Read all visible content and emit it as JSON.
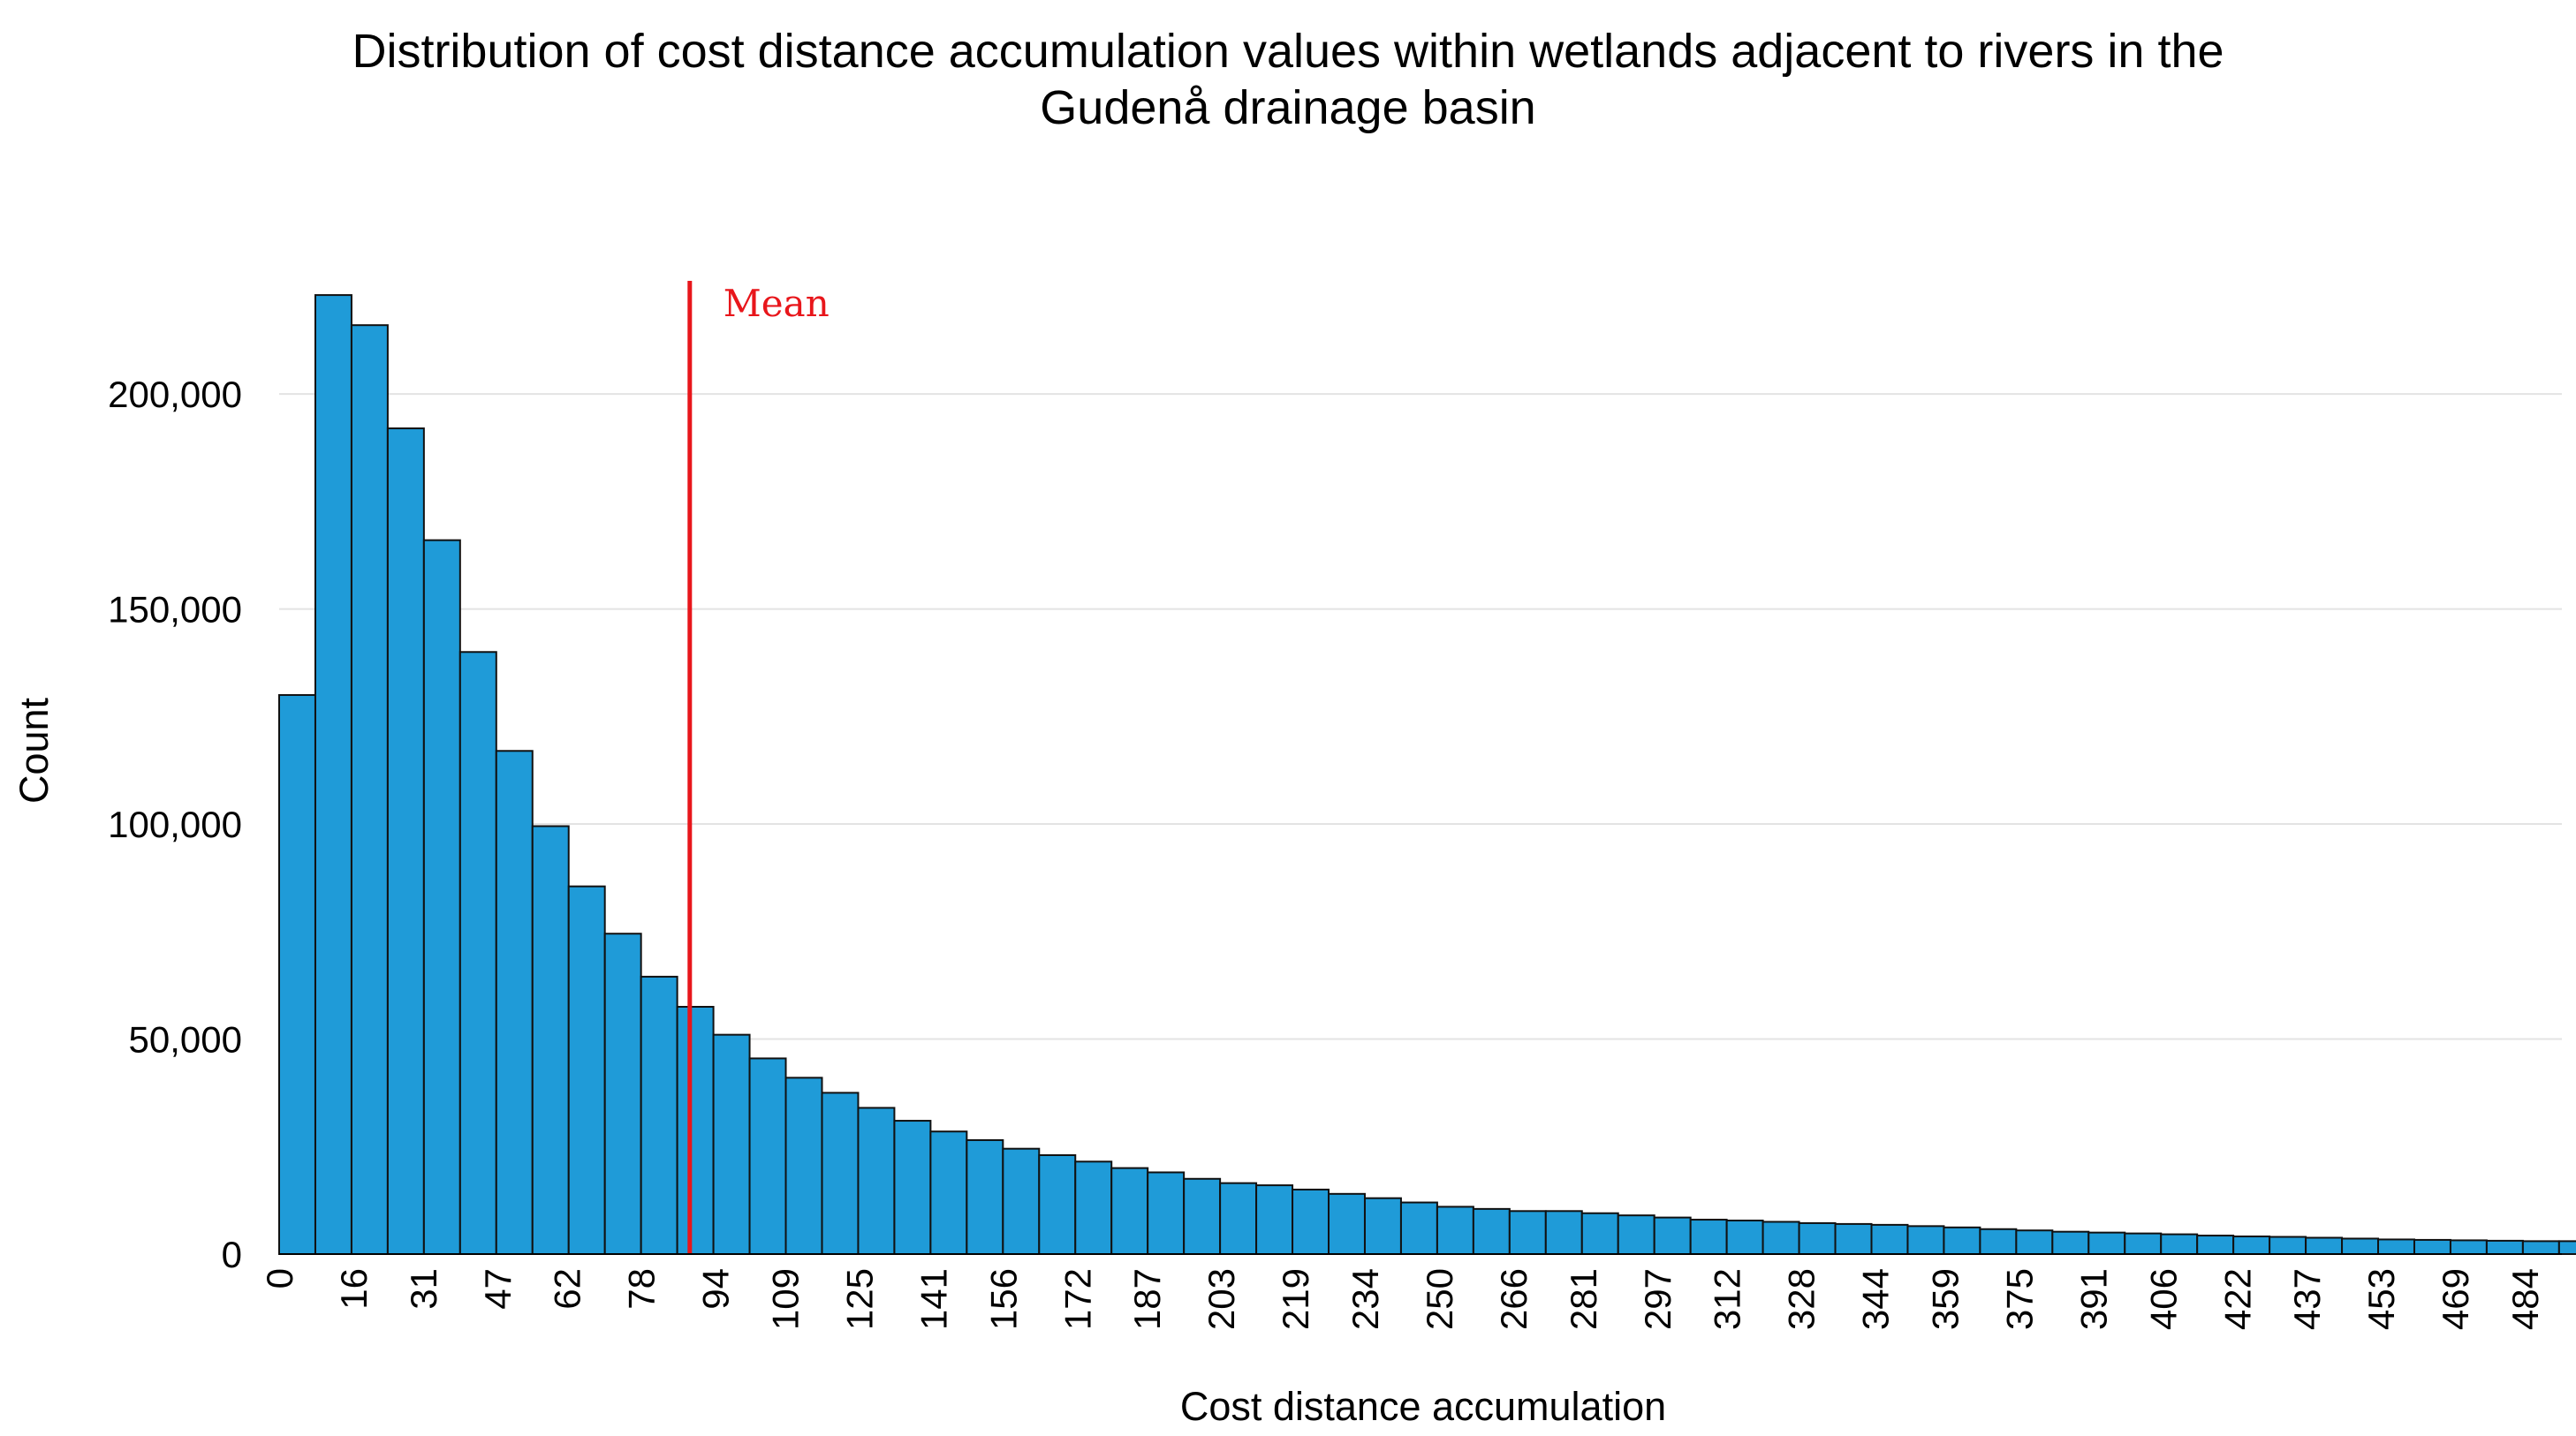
{
  "chart_data": {
    "type": "bar",
    "title_line1": "Distribution of cost distance accumulation values within wetlands adjacent to rivers in the",
    "title_line2": "Gudenå drainage basin",
    "xlabel": "Cost distance accumulation",
    "ylabel": "Count",
    "ylim": [
      0,
      230000
    ],
    "xlim": [
      0,
      492
    ],
    "y_ticks": [
      0,
      50000,
      100000,
      150000,
      200000
    ],
    "y_tick_labels": [
      "0",
      "50,000",
      "100,000",
      "150,000",
      "200,000"
    ],
    "x_ticks": [
      0,
      16,
      31,
      47,
      62,
      78,
      94,
      109,
      125,
      141,
      156,
      172,
      187,
      203,
      219,
      234,
      250,
      266,
      281,
      297,
      312,
      328,
      344,
      359,
      375,
      391,
      406,
      422,
      437,
      453,
      469,
      484
    ],
    "bin_width": 7.8,
    "values": [
      130000,
      223000,
      216000,
      192000,
      166000,
      140000,
      117000,
      99500,
      85500,
      74500,
      64500,
      57500,
      51000,
      45500,
      41000,
      37500,
      34000,
      31000,
      28500,
      26500,
      24500,
      23000,
      21500,
      20000,
      19000,
      17500,
      16500,
      16000,
      15000,
      14000,
      13000,
      12000,
      11000,
      10500,
      10000,
      10000,
      9500,
      9000,
      8500,
      8000,
      7800,
      7500,
      7200,
      7000,
      6800,
      6500,
      6200,
      5800,
      5500,
      5200,
      5000,
      4800,
      4600,
      4300,
      4100,
      4000,
      3800,
      3600,
      3400,
      3300,
      3200,
      3100,
      3000,
      3000
    ],
    "mean_value": 88.5,
    "mean_label": "Mean",
    "grid": true,
    "colors": {
      "bar_fill": "#1f9bd8",
      "bar_edge": "#111111",
      "mean_line": "#e8161b",
      "grid": "#e3e3e3"
    }
  }
}
